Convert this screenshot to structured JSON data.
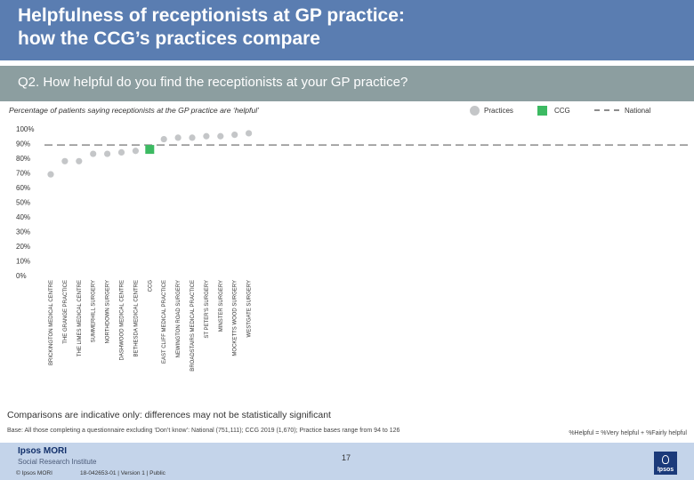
{
  "slide": {
    "title_line1": "Helpfulness of receptionists at GP practice:",
    "title_line2": "how the CCG’s practices compare",
    "question": "Q2. How helpful do you find the receptionists at your GP practice?",
    "subtitle": "Percentage of patients saying receptionists at the GP practice are ‘helpful’",
    "note": "Comparisons are indicative only: differences may not be statistically significant",
    "base": "Base: All those completing a questionnaire excluding ‘Don’t know’: National (751,111); CCG 2019 (1,670); Practice bases range from 94 to 126",
    "definition": "%Helpful = %Very helpful + %Fairly helpful",
    "page_number": "17",
    "logo_line1": "Ipsos MORI",
    "logo_line2": "Social Research Institute",
    "copyright": "© Ipsos MORI",
    "job_ref": "18-042653-01 | Version 1 | Public",
    "badge_text": "Ipsos"
  },
  "legend": {
    "practices": "Practices",
    "ccg": "CCG",
    "national": "National"
  },
  "colors": {
    "header": "#5a7db1",
    "question_bar": "#8c9ea0",
    "practice_marker": "#c4c6c8",
    "ccg_marker": "#3cba62",
    "national_line": "#8c8c8c"
  },
  "chart_data": {
    "type": "scatter",
    "title": "Percentage of patients saying receptionists at the GP practice are ‘helpful’",
    "ylim": [
      0,
      100
    ],
    "yticks": [
      "0%",
      "10%",
      "20%",
      "30%",
      "40%",
      "50%",
      "60%",
      "70%",
      "80%",
      "90%",
      "100%"
    ],
    "national": 89,
    "categories": [
      "BRICKINGTON MEDICAL CENTRE",
      "THE GRANGE PRACTICE",
      "THE LIMES MEDICAL CENTRE",
      "SUMMERHILL SURGERY",
      "NORTHDOWN SURGERY",
      "DASHWOOD MEDICAL CENTRE",
      "BETHESDA MEDICAL CENTRE",
      "CCG",
      "EAST CLIFF MEDICAL PRACTICE",
      "NEWINGTON ROAD SURGERY",
      "BROADSTAIRS MEDICAL PRACTICE",
      "ST PETER'S SURGERY",
      "MINSTER SURGERY",
      "MOCKETTS WOOD SURGERY",
      "WESTGATE SURGERY"
    ],
    "values": [
      69,
      78,
      78,
      83,
      83,
      84,
      85,
      86,
      93,
      94,
      94,
      95,
      95,
      96,
      97
    ],
    "highlight": "CCG"
  }
}
